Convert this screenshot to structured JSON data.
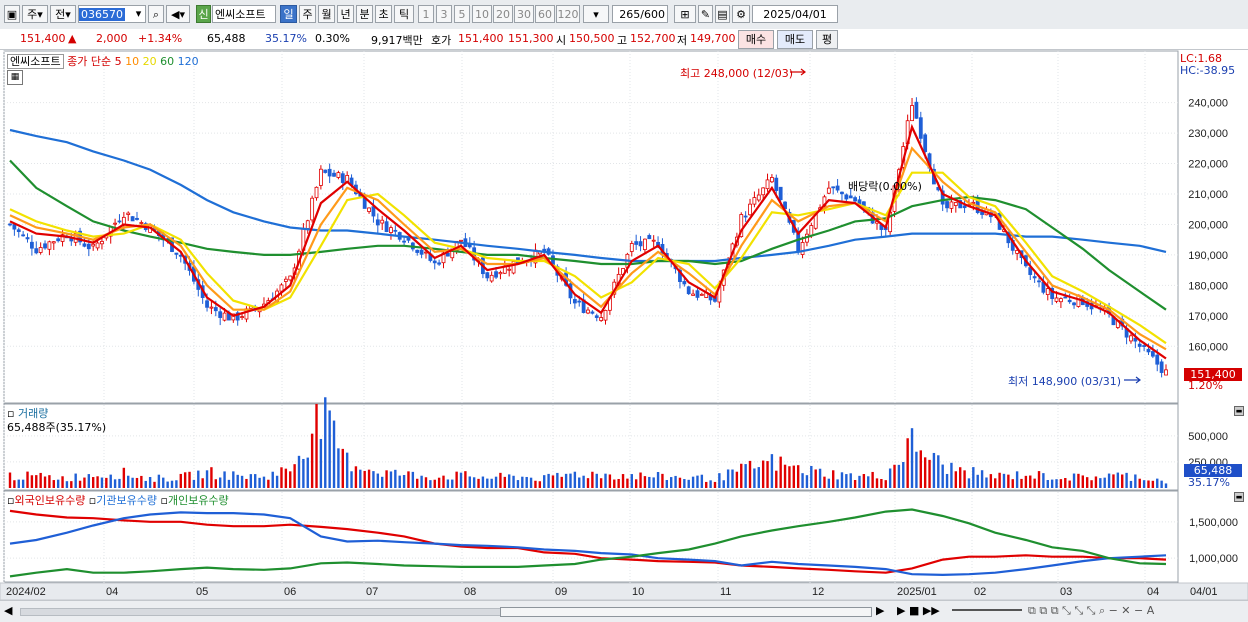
{
  "toolbar": {
    "tab1": "주",
    "tab2": "전",
    "code": "036570",
    "name": "엔씨소프트",
    "badge": "신",
    "periods": [
      "일",
      "주",
      "월",
      "년",
      "분",
      "초",
      "틱"
    ],
    "intervals": [
      "1",
      "3",
      "5",
      "10",
      "20",
      "30",
      "60",
      "120"
    ],
    "count": "265",
    "count_total": "/600",
    "date": "2025/04/01"
  },
  "quote": {
    "price": "151,400",
    "arrow": "▲",
    "change": "2,000",
    "rate": "+1.34%",
    "volume": "65,488",
    "vol_rate": "35.17%",
    "turnover": "0.30%",
    "amount": "9,917백만",
    "hoga_label": "호가",
    "ask": "151,400",
    "bid": "151,300",
    "open_label": "시",
    "open": "150,500",
    "high_label": "고",
    "high": "152,700",
    "low_label": "저",
    "low": "149,700",
    "buy": "매수",
    "sell": "매도",
    "eval": "평"
  },
  "chart_data": [
    {
      "type": "candlestick",
      "title": "엔씨소프트",
      "legend": {
        "price_label": "종가 단순",
        "ma": [
          "5",
          "10",
          "20",
          "60",
          "120"
        ]
      },
      "y_ticks": [
        "240,000",
        "230,000",
        "220,000",
        "210,000",
        "200,000",
        "190,000",
        "180,000",
        "170,000",
        "160,000"
      ],
      "ylim": [
        144000,
        254000
      ],
      "last_price": "151,400",
      "last_rate": "1.20%",
      "lc": "LC:1.68",
      "hc": "HC:-38.95",
      "annotations": {
        "high": "최고 248,000 (12/03)",
        "low": "최저 148,900 (03/31)",
        "exdiv": "배당락(0.00%)"
      },
      "x": [
        0,
        6,
        13,
        19,
        26,
        32,
        39,
        45,
        51,
        58,
        64,
        71,
        77,
        84,
        90,
        97,
        103,
        109,
        116,
        122,
        129,
        135,
        142,
        148,
        155,
        161,
        167,
        174,
        180,
        187,
        193,
        200,
        206,
        213,
        219,
        225,
        232,
        238,
        245,
        251,
        258,
        264
      ],
      "close": [
        200000,
        192000,
        197000,
        192000,
        204000,
        199000,
        190000,
        173000,
        169000,
        174000,
        182000,
        217000,
        215000,
        201000,
        196000,
        187000,
        195000,
        183000,
        188000,
        191000,
        174000,
        170000,
        193000,
        194000,
        178000,
        175000,
        202000,
        215000,
        192000,
        212000,
        208000,
        197000,
        240000,
        205000,
        207000,
        202000,
        185000,
        176000,
        175000,
        170000,
        160000,
        151400
      ],
      "ma5": [
        201000,
        197000,
        196000,
        194000,
        200000,
        199000,
        191000,
        176000,
        170000,
        173000,
        180000,
        207000,
        214000,
        205000,
        198000,
        189000,
        193000,
        185000,
        187000,
        190000,
        177000,
        171000,
        188000,
        193000,
        181000,
        176000,
        198000,
        212000,
        197000,
        208000,
        207000,
        199000,
        232000,
        210000,
        206000,
        203000,
        188000,
        178000,
        175000,
        171000,
        162000,
        156000
      ],
      "ma10": [
        203000,
        199000,
        197000,
        195000,
        199000,
        200000,
        193000,
        180000,
        172000,
        172000,
        178000,
        200000,
        212000,
        208000,
        200000,
        191000,
        192000,
        187000,
        187000,
        189000,
        180000,
        173000,
        184000,
        191000,
        184000,
        177000,
        193000,
        208000,
        201000,
        206000,
        207000,
        201000,
        225000,
        214000,
        207000,
        204000,
        191000,
        180000,
        176000,
        172000,
        164000,
        159000
      ],
      "ma20": [
        205000,
        201000,
        198000,
        196000,
        197000,
        200000,
        195000,
        184000,
        175000,
        172000,
        176000,
        193000,
        208000,
        210000,
        203000,
        194000,
        192000,
        189000,
        188000,
        188000,
        183000,
        176000,
        181000,
        189000,
        187000,
        179000,
        189000,
        204000,
        203000,
        205000,
        207000,
        203000,
        217000,
        217000,
        209000,
        206000,
        194000,
        183000,
        178000,
        173000,
        167000,
        161000
      ],
      "ma60": [
        221000,
        212000,
        206000,
        201000,
        198000,
        196000,
        194000,
        192000,
        191000,
        190000,
        190000,
        191000,
        192000,
        193000,
        193000,
        192000,
        191000,
        190000,
        190000,
        189000,
        188000,
        187000,
        187000,
        188000,
        188000,
        187000,
        188000,
        192000,
        195000,
        198000,
        201000,
        202000,
        206000,
        208000,
        209000,
        208000,
        205000,
        199000,
        192000,
        185000,
        178000,
        172000
      ],
      "ma120": [
        231000,
        229000,
        227000,
        224000,
        221000,
        218000,
        213000,
        208000,
        204000,
        201000,
        199000,
        198000,
        198000,
        197000,
        196000,
        195000,
        194000,
        193000,
        192000,
        191000,
        190000,
        189000,
        188000,
        188000,
        188000,
        188000,
        189000,
        190000,
        191000,
        193000,
        195000,
        196000,
        197000,
        197000,
        197000,
        197000,
        196000,
        196000,
        195000,
        194000,
        193000,
        191000
      ]
    },
    {
      "type": "bar",
      "title": "거래량",
      "current": "65,488주(35.17%)",
      "y_ticks": [
        "500,000",
        "250,000"
      ],
      "ylim": [
        0,
        700000
      ],
      "last_value": "65,488",
      "last_rate": "35.17%",
      "values": [
        120000,
        110000,
        95000,
        130000,
        140000,
        90000,
        100000,
        150000,
        120000,
        110000,
        180000,
        700000,
        260000,
        160000,
        130000,
        110000,
        120000,
        100000,
        110000,
        90000,
        140000,
        130000,
        120000,
        110000,
        100000,
        90000,
        170000,
        250000,
        180000,
        140000,
        110000,
        120000,
        430000,
        210000,
        150000,
        110000,
        130000,
        110000,
        100000,
        120000,
        110000,
        65488
      ]
    },
    {
      "type": "line",
      "series_names": [
        "외국인보유수량",
        "기관보유수량",
        "개인보유수량"
      ],
      "y_ticks": [
        "1,500,000",
        "1,000,000"
      ],
      "ylim": [
        700000,
        1800000
      ],
      "series": [
        {
          "name": "외국인보유수량",
          "values": [
            1650000,
            1600000,
            1560000,
            1550000,
            1520000,
            1500000,
            1500000,
            1460000,
            1440000,
            1440000,
            1460000,
            1430000,
            1400000,
            1350000,
            1300000,
            1200000,
            1160000,
            1140000,
            1140000,
            1080000,
            1060000,
            1000000,
            980000,
            960000,
            950000,
            940000,
            900000,
            880000,
            860000,
            840000,
            820000,
            800000,
            860000,
            980000,
            1020000,
            1020000,
            1040000,
            1020000,
            1020000,
            1000000,
            1000000,
            980000
          ]
        },
        {
          "name": "기관보유수량",
          "values": [
            1200000,
            1250000,
            1350000,
            1450000,
            1550000,
            1600000,
            1630000,
            1620000,
            1620000,
            1600000,
            1550000,
            1300000,
            1230000,
            1240000,
            1220000,
            1200000,
            1180000,
            1170000,
            1150000,
            1120000,
            1100000,
            1070000,
            1050000,
            1000000,
            980000,
            960000,
            900000,
            950000,
            920000,
            900000,
            880000,
            850000,
            780000,
            770000,
            780000,
            800000,
            850000,
            900000,
            960000,
            1000000,
            1020000,
            1040000
          ]
        },
        {
          "name": "개인보유수량",
          "values": [
            750000,
            800000,
            850000,
            800000,
            800000,
            820000,
            850000,
            870000,
            850000,
            840000,
            860000,
            930000,
            940000,
            920000,
            900000,
            890000,
            880000,
            880000,
            880000,
            900000,
            920000,
            980000,
            1020000,
            1070000,
            1120000,
            1200000,
            1300000,
            1380000,
            1440000,
            1500000,
            1560000,
            1640000,
            1670000,
            1580000,
            1480000,
            1350000,
            1250000,
            1150000,
            1100000,
            1000000,
            930000,
            920000
          ]
        }
      ],
      "x_ticks": [
        "2024/02",
        "04",
        "05",
        "06",
        "07",
        "08",
        "09",
        "10",
        "11",
        "12",
        "2025/01",
        "02",
        "03",
        "04",
        "04/01"
      ]
    }
  ]
}
